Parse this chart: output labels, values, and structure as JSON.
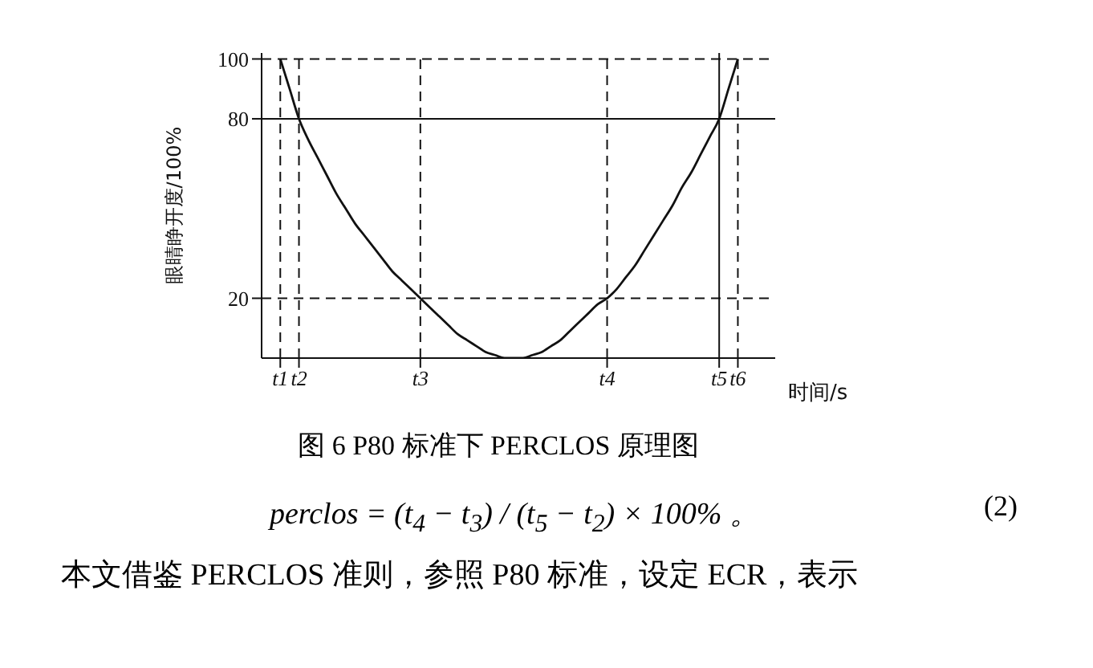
{
  "chart_data": {
    "type": "line",
    "xlabel": "时间/s",
    "ylabel": "眼睛睁开度/100%",
    "annotations": [
      "图 6 P80 标准下 PERCLOS 原理图",
      "perclos = (t$_{4}$ − t$_{3}$) / (t$_{5}$ − t$_{2}$) × 100%  。",
      "(2)",
      "本文借鉴 PERCLOS 准则，参照 P80 标准，设定 ECR，表示"
    ],
    "categories": [
      null,
      null,
      "t1",
      null,
      "t2",
      null,
      null,
      null,
      null,
      null,
      null,
      null,
      null,
      null,
      null,
      null,
      null,
      "t3",
      null,
      null,
      null,
      null,
      null,
      null,
      null,
      null,
      null,
      null,
      null,
      null,
      null,
      null,
      null,
      null,
      null,
      null,
      null,
      "t4",
      null,
      null,
      null,
      null,
      null,
      null,
      null,
      null,
      null,
      null,
      null,
      "t5",
      null,
      "t6",
      null,
      null,
      null,
      null
    ],
    "series": [
      {
        "color": "#111111",
        "values": [
          null,
          null,
          100,
          90,
          80,
          73,
          67,
          61,
          55,
          50,
          45,
          41,
          37,
          33,
          29,
          26,
          23,
          20,
          17,
          14,
          11,
          8,
          6,
          4,
          2,
          1,
          0,
          0,
          0,
          1,
          2,
          4,
          6,
          9,
          12,
          15,
          18,
          20,
          23,
          27,
          31,
          36,
          41,
          46,
          51,
          57,
          62,
          68,
          74,
          80,
          90,
          100,
          null,
          null,
          null,
          null
        ]
      }
    ],
    "ylim": [
      0,
      102
    ],
    "yticks": [
      20,
      80,
      100
    ],
    "ref_lines": [
      {
        "axis": "y",
        "value": 100,
        "line_style": "dashed"
      },
      {
        "axis": "y",
        "value": 80,
        "line_style": "solid"
      },
      {
        "axis": "y",
        "value": 20,
        "line_style": "dashed"
      },
      {
        "axis": "x",
        "value": "t1",
        "line_style": "dashed"
      },
      {
        "axis": "x",
        "value": "t2",
        "line_style": "dashed"
      },
      {
        "axis": "x",
        "value": "t3",
        "line_style": "dashed"
      },
      {
        "axis": "x",
        "value": "t4",
        "line_style": "dashed"
      },
      {
        "axis": "x",
        "value": "t5",
        "line_style": "solid"
      },
      {
        "axis": "x",
        "value": "t6",
        "line_style": "dashed"
      }
    ],
    "marker": "none",
    "line_style": "solid"
  }
}
